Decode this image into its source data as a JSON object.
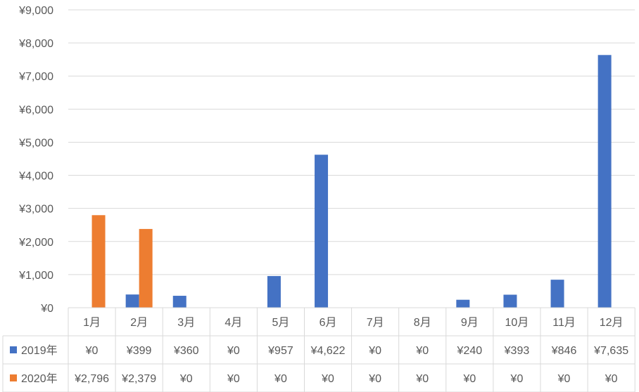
{
  "chart_data": {
    "type": "bar",
    "categories": [
      "1月",
      "2月",
      "3月",
      "4月",
      "5月",
      "6月",
      "7月",
      "8月",
      "9月",
      "10月",
      "11月",
      "12月"
    ],
    "series": [
      {
        "name": "2019年",
        "color": "#4472C4",
        "values": [
          0,
          399,
          360,
          0,
          957,
          4622,
          0,
          0,
          240,
          393,
          846,
          7635
        ],
        "labels": [
          "¥0",
          "¥399",
          "¥360",
          "¥0",
          "¥957",
          "¥4,622",
          "¥0",
          "¥0",
          "¥240",
          "¥393",
          "¥846",
          "¥7,635"
        ]
      },
      {
        "name": "2020年",
        "color": "#ED7D31",
        "values": [
          2796,
          2379,
          0,
          0,
          0,
          0,
          0,
          0,
          0,
          0,
          0,
          0
        ],
        "labels": [
          "¥2,796",
          "¥2,379",
          "¥0",
          "¥0",
          "¥0",
          "¥0",
          "¥0",
          "¥0",
          "¥0",
          "¥0",
          "¥0",
          "¥0"
        ]
      }
    ],
    "ylim": [
      0,
      9000
    ],
    "yticks": [
      0,
      1000,
      2000,
      3000,
      4000,
      5000,
      6000,
      7000,
      8000,
      9000
    ],
    "ytick_labels": [
      "¥0",
      "¥1,000",
      "¥2,000",
      "¥3,000",
      "¥4,000",
      "¥5,000",
      "¥6,000",
      "¥7,000",
      "¥8,000",
      "¥9,000"
    ],
    "grid": true,
    "legend": "data-table"
  }
}
